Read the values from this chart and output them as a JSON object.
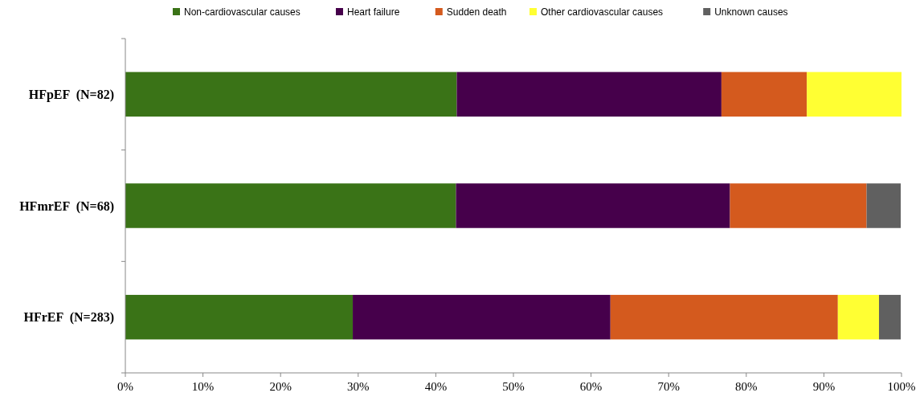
{
  "chart_data": {
    "type": "bar",
    "orientation": "horizontal",
    "stacked": true,
    "legend": "top",
    "grid": false,
    "categories": [
      "HFpEF  (N=82)",
      "HFmrEF  (N=68)",
      "HFrEF  (N=283)"
    ],
    "series": [
      {
        "name": "Non-cardiovascular causes",
        "color": "#3a7317",
        "values": [
          42.7,
          42.6,
          29.3
        ]
      },
      {
        "name": "Heart failure",
        "color": "#46004b",
        "values": [
          34.1,
          35.3,
          33.2
        ]
      },
      {
        "name": "Sudden death",
        "color": "#d45a1e",
        "values": [
          11.0,
          17.6,
          29.3
        ]
      },
      {
        "name": "Other cardiovascular causes",
        "color": "#ffff33",
        "values": [
          12.2,
          null,
          5.3
        ]
      },
      {
        "name": "Unknown causes",
        "color": "#606060",
        "values": [
          null,
          4.4,
          2.8
        ]
      }
    ],
    "xlim": [
      0,
      100
    ],
    "xticks": [
      {
        "value": 0,
        "label": "0%"
      },
      {
        "value": 10,
        "label": "10%"
      },
      {
        "value": 20,
        "label": "20%"
      },
      {
        "value": 30,
        "label": "30%"
      },
      {
        "value": 40,
        "label": "40%"
      },
      {
        "value": 50,
        "label": "50%"
      },
      {
        "value": 60,
        "label": "60%"
      },
      {
        "value": 70,
        "label": "70%"
      },
      {
        "value": 80,
        "label": "80%"
      },
      {
        "value": 90,
        "label": "90%"
      },
      {
        "value": 100,
        "label": "100%"
      }
    ]
  }
}
